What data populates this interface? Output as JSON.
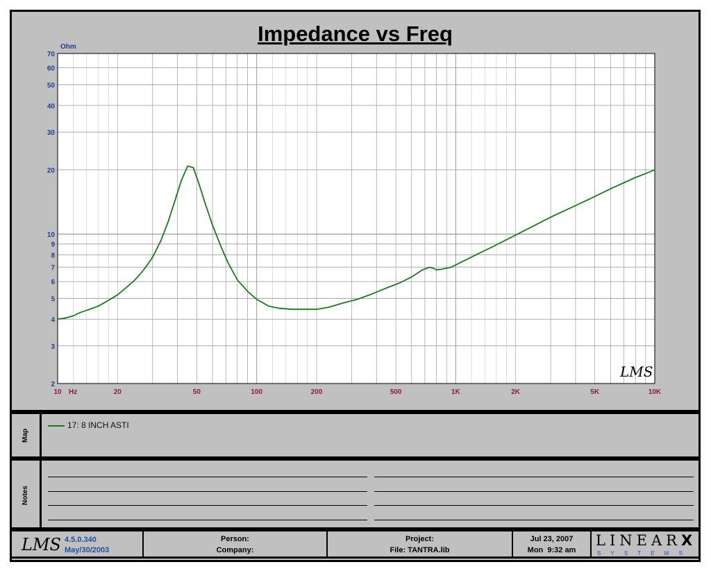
{
  "chart_data": {
    "type": "line",
    "title": "Impedance vs Freq",
    "y_unit": "Ohm",
    "x_unit": "Hz",
    "xscale": "log",
    "yscale": "log",
    "xlim": [
      10,
      10000
    ],
    "ylim": [
      2,
      70
    ],
    "grid": true,
    "x_ticks": [
      {
        "value": 10,
        "label": "10"
      },
      {
        "value": 20,
        "label": "20"
      },
      {
        "value": 50,
        "label": "50"
      },
      {
        "value": 100,
        "label": "100"
      },
      {
        "value": 200,
        "label": "200"
      },
      {
        "value": 500,
        "label": "500"
      },
      {
        "value": 1000,
        "label": "1K"
      },
      {
        "value": 2000,
        "label": "2K"
      },
      {
        "value": 5000,
        "label": "5K"
      },
      {
        "value": 10000,
        "label": "10K"
      }
    ],
    "y_ticks": [
      {
        "value": 2,
        "label": "2"
      },
      {
        "value": 3,
        "label": "3"
      },
      {
        "value": 4,
        "label": "4"
      },
      {
        "value": 5,
        "label": "5"
      },
      {
        "value": 6,
        "label": "6"
      },
      {
        "value": 7,
        "label": "7"
      },
      {
        "value": 8,
        "label": "8"
      },
      {
        "value": 9,
        "label": "9"
      },
      {
        "value": 10,
        "label": "10"
      },
      {
        "value": 20,
        "label": "20"
      },
      {
        "value": 30,
        "label": "30"
      },
      {
        "value": 40,
        "label": "40"
      },
      {
        "value": 50,
        "label": "50"
      },
      {
        "value": 60,
        "label": "60"
      },
      {
        "value": 70,
        "label": "70"
      }
    ],
    "series": [
      {
        "name": "17: 8 INCH ASTI",
        "color": "#1a7a1a",
        "x": [
          10,
          11,
          12,
          13,
          14,
          16,
          18,
          20,
          22,
          24,
          26,
          28,
          30,
          33,
          36,
          39,
          42,
          45,
          48,
          51,
          55,
          60,
          66,
          72,
          80,
          90,
          100,
          115,
          130,
          150,
          175,
          200,
          230,
          270,
          320,
          380,
          450,
          520,
          600,
          680,
          740,
          780,
          800,
          850,
          950,
          1100,
          1300,
          1600,
          2000,
          2500,
          3000,
          4000,
          5000,
          6000,
          7000,
          8000,
          9000,
          10000
        ],
        "y": [
          4.0,
          4.05,
          4.15,
          4.3,
          4.4,
          4.6,
          4.9,
          5.2,
          5.6,
          6.0,
          6.5,
          7.1,
          7.8,
          9.3,
          11.5,
          14.5,
          18.0,
          20.8,
          20.5,
          17.5,
          14.0,
          11.0,
          8.8,
          7.3,
          6.1,
          5.4,
          4.95,
          4.6,
          4.5,
          4.45,
          4.45,
          4.45,
          4.55,
          4.75,
          4.95,
          5.25,
          5.6,
          5.9,
          6.3,
          6.8,
          7.0,
          6.9,
          6.8,
          6.85,
          7.0,
          7.5,
          8.1,
          8.9,
          9.9,
          11.0,
          12.0,
          13.6,
          15.0,
          16.3,
          17.4,
          18.4,
          19.2,
          20.0
        ]
      }
    ]
  },
  "map_label": "Map",
  "notes_label": "Notes",
  "footer": {
    "version": "4.5.0.340",
    "version_date": "May/30/2003",
    "person_label": "Person:",
    "company_label": "Company:",
    "project_label": "Project:",
    "file_label": "File: TANTRA.lib",
    "date": "Jul 23, 2007",
    "time": "Mon  9:32 am",
    "brand_main": "LINEAR",
    "brand_x": "X",
    "brand_sub": "S Y S T E M S",
    "lms_logo": "LMS"
  },
  "colors": {
    "background": "#c0c0c0",
    "plot_bg": "#ffffff",
    "grid": "#999999",
    "tick_y": "#1f3f8f",
    "tick_x": "#8b1a4a",
    "curve": "#1a7a1a"
  }
}
